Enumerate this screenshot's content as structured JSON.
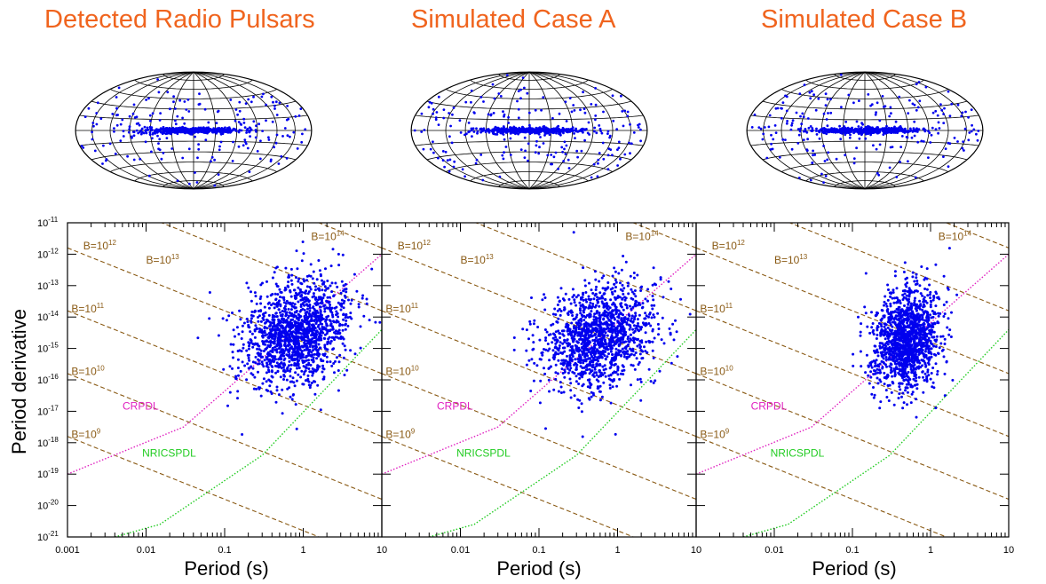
{
  "chart_data": [
    {
      "type": "scatter",
      "projection": "hammer-aitoff",
      "title": "Detected Radio Pulsars",
      "galactic_plane_count": 470,
      "scattered_count": 190
    },
    {
      "type": "scatter",
      "projection": "hammer-aitoff",
      "title": "Simulated Case A",
      "galactic_plane_count": 500,
      "scattered_count": 200
    },
    {
      "type": "scatter",
      "projection": "hammer-aitoff",
      "title": "Simulated Case B",
      "galactic_plane_count": 490,
      "scattered_count": 200
    },
    {
      "type": "scatter",
      "panel": "detected",
      "xlabel": "Period (s)",
      "ylabel": "Period derivative",
      "xscale": "log",
      "yscale": "log",
      "xlim": [
        0.001,
        10
      ],
      "ylim": [
        1e-21,
        1e-11
      ],
      "x_ticks": [
        "0.001",
        "0.01",
        "0.1",
        "1",
        "10"
      ],
      "y_tick_exponents": [
        -11,
        -12,
        -13,
        -14,
        -15,
        -16,
        -17,
        -18,
        -19,
        -20,
        -21
      ],
      "point_cloud": {
        "count": 1500,
        "log_p_center": -0.1,
        "log_p_sd": 0.32,
        "log_pdot_center": -14.5,
        "log_pdot_sd": 0.85
      },
      "field_lines": [
        {
          "base": "B=10",
          "exp": "9",
          "log_b": 9
        },
        {
          "base": "B=10",
          "exp": "10",
          "log_b": 10
        },
        {
          "base": "B=10",
          "exp": "11",
          "log_b": 11
        },
        {
          "base": "B=10",
          "exp": "12",
          "log_b": 12
        },
        {
          "base": "B=10",
          "exp": "13",
          "log_b": 13
        },
        {
          "base": "B=10",
          "exp": "14",
          "log_b": 14
        }
      ],
      "death_lines": [
        {
          "name": "CRPDL",
          "points": [
            [
              0.001,
              -19
            ],
            [
              0.03,
              -17.5
            ],
            [
              10,
              -12
            ]
          ]
        },
        {
          "name": "NRICSPDL",
          "points": [
            [
              0.004,
              -21
            ],
            [
              0.015,
              -20.6
            ],
            [
              0.3,
              -18.4
            ],
            [
              10,
              -14.4
            ]
          ]
        }
      ]
    },
    {
      "type": "scatter",
      "panel": "case-a",
      "xlabel": "Period (s)",
      "xscale": "log",
      "yscale": "log",
      "xlim": [
        0.001,
        10
      ],
      "ylim": [
        1e-21,
        1e-11
      ],
      "x_ticks": [
        "0.01",
        "0.1",
        "1",
        "10"
      ],
      "point_cloud": {
        "count": 1400,
        "log_p_center": -0.25,
        "log_p_sd": 0.35,
        "log_pdot_center": -14.6,
        "log_pdot_sd": 0.8
      },
      "field_lines": [
        {
          "base": "B=10",
          "exp": "9",
          "log_b": 9
        },
        {
          "base": "B=10",
          "exp": "10",
          "log_b": 10
        },
        {
          "base": "B=10",
          "exp": "11",
          "log_b": 11
        },
        {
          "base": "B=10",
          "exp": "12",
          "log_b": 12
        },
        {
          "base": "B=10",
          "exp": "13",
          "log_b": 13
        },
        {
          "base": "B=10",
          "exp": "14",
          "log_b": 14
        }
      ],
      "death_lines": [
        {
          "name": "CRPDL",
          "points": [
            [
              0.001,
              -19
            ],
            [
              0.03,
              -17.5
            ],
            [
              10,
              -12
            ]
          ]
        },
        {
          "name": "NRICSPDL",
          "points": [
            [
              0.004,
              -21
            ],
            [
              0.015,
              -20.6
            ],
            [
              0.3,
              -18.4
            ],
            [
              10,
              -14.4
            ]
          ]
        }
      ]
    },
    {
      "type": "scatter",
      "panel": "case-b",
      "xlabel": "Period (s)",
      "xscale": "log",
      "yscale": "log",
      "xlim": [
        0.001,
        10
      ],
      "ylim": [
        1e-21,
        1e-11
      ],
      "x_ticks": [
        "0.01",
        "0.1",
        "1",
        "10"
      ],
      "point_cloud": {
        "count": 1400,
        "log_p_center": -0.3,
        "log_p_sd": 0.22,
        "log_pdot_center": -14.7,
        "log_pdot_sd": 0.8
      },
      "field_lines": [
        {
          "base": "B=10",
          "exp": "9",
          "log_b": 9
        },
        {
          "base": "B=10",
          "exp": "10",
          "log_b": 10
        },
        {
          "base": "B=10",
          "exp": "11",
          "log_b": 11
        },
        {
          "base": "B=10",
          "exp": "12",
          "log_b": 12
        },
        {
          "base": "B=10",
          "exp": "13",
          "log_b": 13
        },
        {
          "base": "B=10",
          "exp": "14",
          "log_b": 14
        }
      ],
      "death_lines": [
        {
          "name": "CRPDL",
          "points": [
            [
              0.001,
              -19
            ],
            [
              0.03,
              -17.5
            ],
            [
              10,
              -12
            ]
          ]
        },
        {
          "name": "NRICSPDL",
          "points": [
            [
              0.004,
              -21
            ],
            [
              0.015,
              -20.6
            ],
            [
              0.3,
              -18.4
            ],
            [
              10,
              -14.4
            ]
          ]
        }
      ]
    }
  ],
  "colors": {
    "title": "#f0641e",
    "points": "#0000ee",
    "field_lines": "#8a5a14",
    "crpdl": "#e020c0",
    "nricspdl": "#22cc22"
  }
}
